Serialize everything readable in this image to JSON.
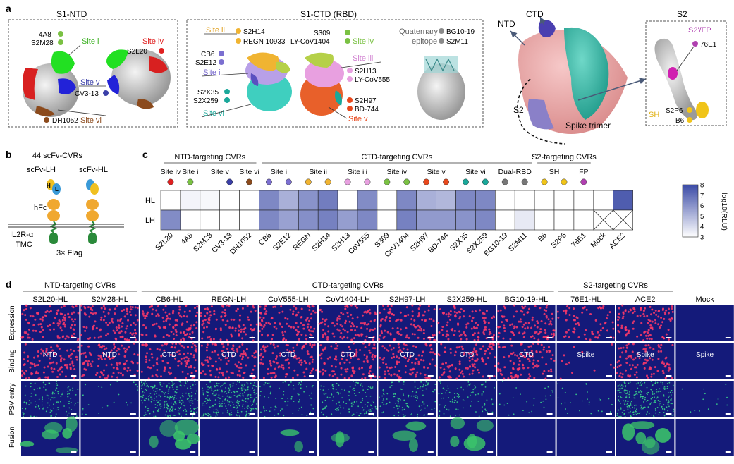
{
  "panel_a": {
    "letter": "a",
    "ntd": {
      "title": "S1-NTD",
      "ab_4a8": "4A8",
      "ab_s2m28": "S2M28",
      "site_i": "Site i",
      "site_iv": "Site iv",
      "ab_s2l20": "S2L20",
      "site_v": "Site v",
      "ab_cv313": "CV3-13",
      "ab_dh1052": "DH1052",
      "site_vi": "Site vi"
    },
    "ctd": {
      "title": "S1-CTD (RBD)",
      "site_ii": "Site ii",
      "ab_s2h14": "S2H14",
      "ab_regn": "REGN 10933",
      "ab_cb6": "CB6",
      "ab_s2e12": "S2E12",
      "site_i": "Site i",
      "ab_s2x35": "S2X35",
      "ab_s2x259": "S2X259",
      "site_vi": "Site vi",
      "ab_s309": "S309",
      "ab_lycov1404": "LY-CoV1404",
      "site_iv": "Site iv",
      "site_iii": "Site iii",
      "ab_s2h13": "S2H13",
      "ab_lycov555": "LY-CoV555",
      "ab_s2h97": "S2H97",
      "ab_bd744": "BD-744",
      "site_v": "Site v",
      "quat1": "Quaternary",
      "quat2": "epitope",
      "ab_bg1019": "BG10-19",
      "ab_s2m11": "S2M11"
    },
    "spike": {
      "ntd": "NTD",
      "ctd": "CTD",
      "s2": "S2",
      "trimer": "Spike trimer"
    },
    "s2box": {
      "title": "S2",
      "fp": "S2'/FP",
      "ab_76e1": "76E1",
      "sh": "SH",
      "ab_s2p6": "S2P6",
      "ab_b6": "B6"
    }
  },
  "panel_b": {
    "letter": "b",
    "count": "44 scFv-CVRs",
    "lh": "scFv-LH",
    "hl": "scFv-HL",
    "h": "H",
    "l": "L",
    "hfc": "hFc",
    "il2r": "IL2R-α",
    "tmc": "TMC",
    "flag": "3× Flag"
  },
  "panel_c": {
    "letter": "c",
    "groups": [
      "NTD-targeting CVRs",
      "CTD-targeting CVRs",
      "S2-targeting CVRs"
    ],
    "site_labels": [
      "Site iv",
      "Site i",
      "Site v",
      "Site vi",
      "Site i",
      "Site ii",
      "Site iii",
      "Site iv",
      "Site v",
      "Site vi",
      "Dual-RBD",
      "SH",
      "FP"
    ],
    "row_labels": [
      "HL",
      "LH"
    ],
    "col_labels": [
      "S2L20",
      "4A8",
      "S2M28",
      "CV3-13",
      "DH1052",
      "CB6",
      "S2E12",
      "REGN",
      "S2H14",
      "S2H13",
      "CoV555",
      "S309",
      "CoV1404",
      "S2H97",
      "BD-744",
      "S2X35",
      "S2X259",
      "BG10-19",
      "S2M11",
      "B6",
      "S2P6",
      "76E1",
      "Mock",
      "ACE2"
    ],
    "heat_hl": [
      3.0,
      3.3,
      3.2,
      3.0,
      3.0,
      6.3,
      5.2,
      6.0,
      6.6,
      3.0,
      6.2,
      3.0,
      6.3,
      5.2,
      5.0,
      6.3,
      6.3,
      3.0,
      3.0,
      3.0,
      3.0,
      3.0,
      3.0,
      7.5
    ],
    "heat_lh": [
      6.2,
      3.0,
      3.0,
      3.0,
      3.0,
      6.3,
      5.6,
      6.1,
      6.5,
      5.7,
      6.3,
      3.0,
      6.5,
      5.8,
      5.8,
      6.0,
      6.3,
      3.0,
      3.6,
      3.0,
      3.0,
      3.0,
      null,
      null
    ],
    "colorbar": {
      "ticks": [
        "8",
        "7",
        "6",
        "5",
        "4",
        "3"
      ],
      "label": "log10(RLU)",
      "min": 3,
      "max": 8,
      "low_color": "#ffffff",
      "high_color": "#3b4ba6"
    },
    "dot_colors": [
      "#e02020",
      "#7ac143",
      "#3a3fa8",
      "#8b4a1c",
      "#7b6fd0",
      "#f0b432",
      "#e8a0e0",
      "#7ac143",
      "#e8481c",
      "#1aa89a",
      "#777777",
      "#f0c419",
      "#b040b0"
    ]
  },
  "panel_d": {
    "letter": "d",
    "groups": [
      "NTD-targeting CVRs",
      "CTD-targeting CVRs",
      "S2-targeting CVRs"
    ],
    "columns": [
      "S2L20-HL",
      "S2M28-HL",
      "CB6-HL",
      "REGN-LH",
      "CoV555-LH",
      "CoV1404-LH",
      "S2H97-LH",
      "S2X259-HL",
      "BG10-19-HL",
      "76E1-HL",
      "ACE2",
      "Mock"
    ],
    "rows": [
      "Expression",
      "Binding",
      "PSV entry",
      "Fusion"
    ],
    "binding_labels": [
      "NTD",
      "NTD",
      "CTD",
      "CTD",
      "CTD",
      "CTD",
      "CTD",
      "CTD",
      "CTD",
      "Spike",
      "Spike",
      "Spike"
    ],
    "expression_density": [
      0.9,
      0.9,
      0.9,
      0.8,
      0.85,
      0.85,
      0.85,
      0.85,
      0.85,
      0.55,
      0.9,
      0.0
    ],
    "binding_density": [
      0.85,
      0.85,
      0.85,
      0.85,
      0.85,
      0.85,
      0.85,
      0.85,
      0.85,
      0.1,
      0.8,
      0.0
    ],
    "entry_density": [
      0.45,
      0.1,
      0.9,
      1.0,
      0.3,
      0.5,
      0.45,
      0.35,
      0.1,
      0.1,
      0.95,
      0.05
    ],
    "fusion_level": [
      0.8,
      0.0,
      0.85,
      0.0,
      0.35,
      0.35,
      0.4,
      0.75,
      0.0,
      0.0,
      0.8,
      0.0
    ]
  }
}
